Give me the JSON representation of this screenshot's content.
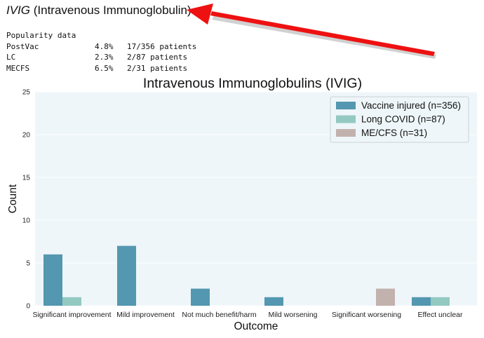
{
  "heading": {
    "abbr": "IVIG",
    "full": "(Intravenous Immunoglobulin)"
  },
  "popularity": {
    "title": "Popularity data",
    "rows": [
      {
        "group": "PostVac",
        "percent": "4.8%",
        "count": "17/356 patients"
      },
      {
        "group": "LC",
        "percent": "2.3%",
        "count": "2/87 patients"
      },
      {
        "group": "MECFS",
        "percent": "6.5%",
        "count": "2/31 patients"
      }
    ]
  },
  "arrow": {
    "color": "#ee1111"
  },
  "chart_data": {
    "type": "bar",
    "title": "Intravenous Immunoglobulins (IVIG)",
    "xlabel": "Outcome",
    "ylabel": "Count",
    "ylim": [
      0,
      25
    ],
    "yticks": [
      0,
      5,
      10,
      15,
      20,
      25
    ],
    "grid": true,
    "legend_position": "top-right",
    "background": "#eef6f9",
    "categories": [
      "Significant improvement",
      "Mild improvement",
      "Not much benefit/harm",
      "Mild worsening",
      "Significant worsening",
      "Effect unclear"
    ],
    "series": [
      {
        "name": "Vaccine injured (n=356)",
        "color": "#5497b0",
        "values": [
          6,
          7,
          2,
          1,
          0,
          1
        ]
      },
      {
        "name": "Long COVID (n=87)",
        "color": "#93c9c1",
        "values": [
          1,
          0,
          0,
          0,
          0,
          1
        ]
      },
      {
        "name": "ME/CFS (n=31)",
        "color": "#c2b2ae",
        "values": [
          0,
          0,
          0,
          0,
          2,
          0
        ]
      }
    ]
  }
}
